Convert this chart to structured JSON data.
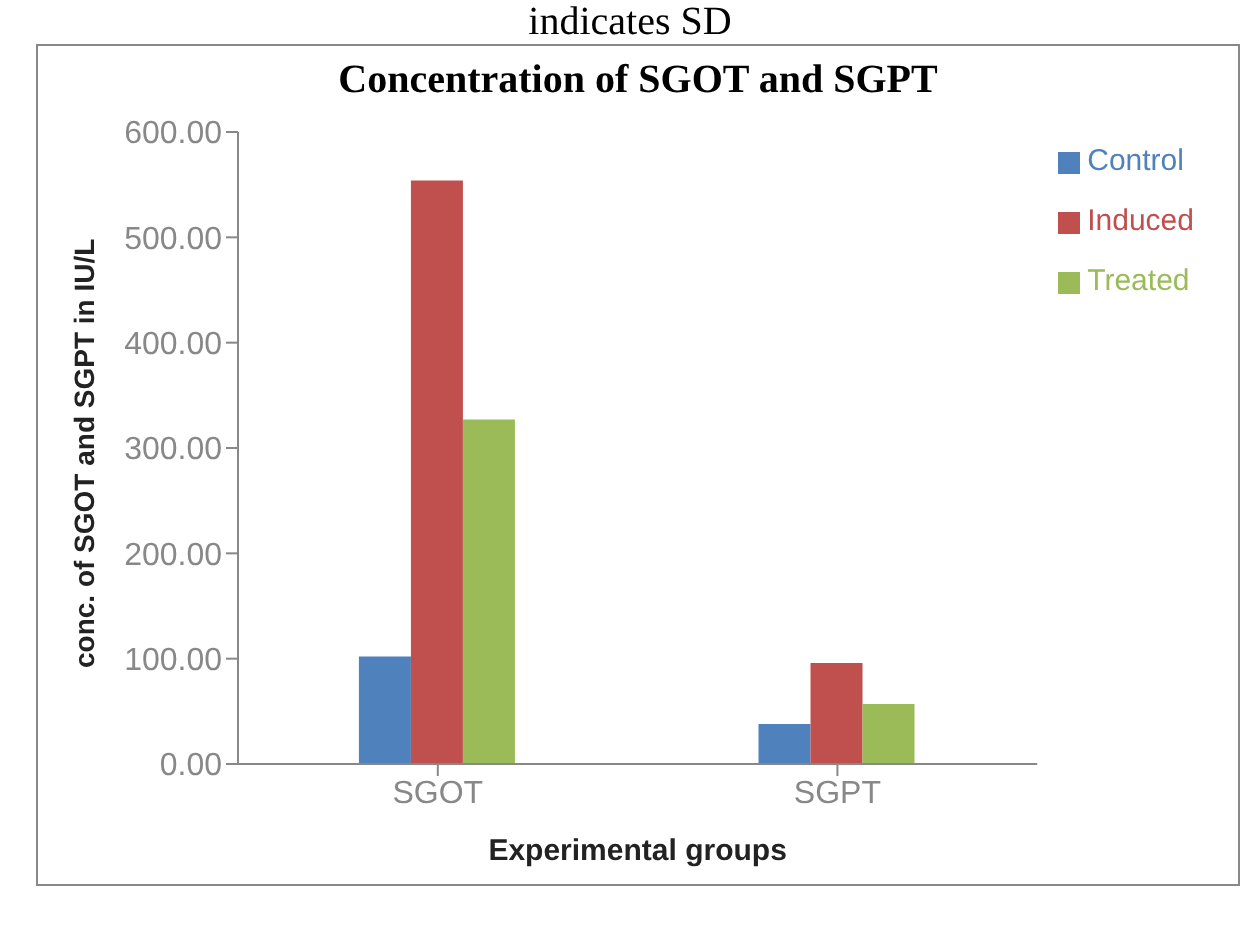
{
  "chart_data": {
    "type": "bar",
    "title": "Concentration of SGOT and SGPT",
    "xlabel": "Experimental groups",
    "ylabel": "conc. of SGOT and SGPT in IU/L",
    "annotations": [
      "indicates SD"
    ],
    "categories": [
      "SGOT",
      "SGPT"
    ],
    "series": [
      {
        "name": "Control",
        "color": "#4f81bd",
        "values": [
          102,
          38
        ]
      },
      {
        "name": "Induced",
        "color": "#c0504d",
        "values": [
          554,
          96
        ]
      },
      {
        "name": "Treated",
        "color": "#9bbb59",
        "values": [
          327,
          57
        ]
      }
    ],
    "ylim": [
      0,
      600
    ],
    "yticks": [
      {
        "value": 0,
        "label": "0.00"
      },
      {
        "value": 100,
        "label": "100.00"
      },
      {
        "value": 200,
        "label": "200.00"
      },
      {
        "value": 300,
        "label": "300.00"
      },
      {
        "value": 400,
        "label": "400.00"
      },
      {
        "value": 500,
        "label": "500.00"
      },
      {
        "value": 600,
        "label": "600.00"
      }
    ],
    "grid": false,
    "legend": "right"
  }
}
